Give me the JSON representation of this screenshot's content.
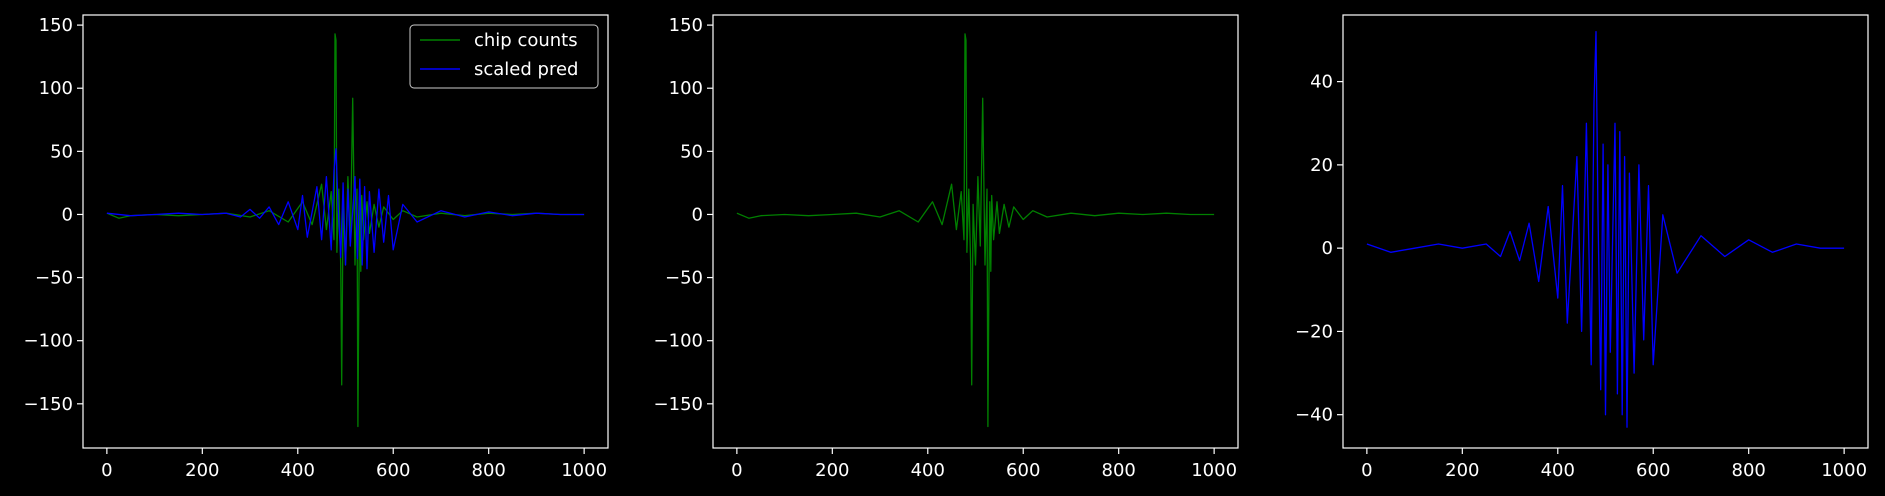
{
  "theme": {
    "background": "#000000",
    "axes_color": "#ffffff",
    "green": "#008000",
    "blue": "#0000ff"
  },
  "chart_data": [
    {
      "type": "line",
      "xlim": [
        -50,
        1050
      ],
      "ylim": [
        -185,
        158
      ],
      "xticks": [
        0,
        200,
        400,
        600,
        800,
        1000
      ],
      "yticks": [
        -150,
        -100,
        -50,
        0,
        50,
        100,
        150
      ],
      "ytick_labels": [
        "−150",
        "−100",
        "−50",
        "0",
        "50",
        "100",
        "150"
      ],
      "xtick_labels": [
        "0",
        "200",
        "400",
        "600",
        "800",
        "1000"
      ],
      "grid": false,
      "legend": {
        "placement": "top-right",
        "entries": [
          "chip counts",
          "scaled pred"
        ]
      },
      "series": [
        {
          "name": "chip counts",
          "color": "#008000",
          "x": [
            0,
            25,
            50,
            100,
            150,
            200,
            250,
            300,
            340,
            380,
            410,
            430,
            450,
            460,
            470,
            476,
            478,
            480,
            482,
            486,
            490,
            492,
            495,
            500,
            505,
            510,
            515,
            520,
            524,
            526,
            528,
            530,
            532,
            534,
            538,
            545,
            550,
            560,
            570,
            580,
            600,
            620,
            650,
            700,
            750,
            800,
            850,
            900,
            950,
            1000
          ],
          "y": [
            1,
            -3,
            -1,
            0,
            -1,
            0,
            1,
            -2,
            3,
            -6,
            10,
            -8,
            24,
            -12,
            18,
            -20,
            143,
            138,
            -30,
            20,
            -40,
            -135,
            8,
            -40,
            30,
            -25,
            92,
            -40,
            20,
            -168,
            -60,
            10,
            -45,
            15,
            -20,
            10,
            -15,
            8,
            -10,
            6,
            -4,
            3,
            -2,
            1,
            -1,
            1,
            0,
            1,
            0,
            0
          ]
        },
        {
          "name": "scaled pred",
          "color": "#0000ff",
          "x": [
            0,
            50,
            100,
            150,
            200,
            250,
            280,
            300,
            320,
            340,
            360,
            380,
            400,
            410,
            420,
            440,
            450,
            460,
            470,
            476,
            480,
            484,
            490,
            495,
            500,
            505,
            510,
            520,
            525,
            530,
            535,
            540,
            545,
            550,
            560,
            570,
            580,
            590,
            600,
            620,
            650,
            700,
            750,
            800,
            850,
            900,
            950,
            1000
          ],
          "y": [
            1,
            -1,
            0,
            1,
            0,
            1,
            -2,
            4,
            -3,
            6,
            -8,
            10,
            -12,
            15,
            -18,
            22,
            -20,
            30,
            -28,
            35,
            52,
            10,
            -34,
            25,
            -40,
            20,
            -25,
            30,
            -35,
            28,
            -40,
            22,
            -43,
            18,
            -30,
            20,
            -22,
            15,
            -28,
            8,
            -6,
            3,
            -2,
            2,
            -1,
            1,
            0,
            0
          ]
        }
      ]
    },
    {
      "type": "line",
      "xlim": [
        -50,
        1050
      ],
      "ylim": [
        -185,
        158
      ],
      "xticks": [
        0,
        200,
        400,
        600,
        800,
        1000
      ],
      "yticks": [
        -150,
        -100,
        -50,
        0,
        50,
        100,
        150
      ],
      "ytick_labels": [
        "−150",
        "−100",
        "−50",
        "0",
        "50",
        "100",
        "150"
      ],
      "xtick_labels": [
        "0",
        "200",
        "400",
        "600",
        "800",
        "1000"
      ],
      "grid": false,
      "series": [
        {
          "color": "#008000",
          "x": [
            0,
            25,
            50,
            100,
            150,
            200,
            250,
            300,
            340,
            380,
            410,
            430,
            450,
            460,
            470,
            476,
            478,
            480,
            482,
            486,
            490,
            492,
            495,
            500,
            505,
            510,
            515,
            520,
            524,
            526,
            528,
            530,
            532,
            534,
            538,
            545,
            550,
            560,
            570,
            580,
            600,
            620,
            650,
            700,
            750,
            800,
            850,
            900,
            950,
            1000
          ],
          "y": [
            1,
            -3,
            -1,
            0,
            -1,
            0,
            1,
            -2,
            3,
            -6,
            10,
            -8,
            24,
            -12,
            18,
            -20,
            143,
            138,
            -30,
            20,
            -40,
            -135,
            8,
            -40,
            30,
            -25,
            92,
            -40,
            20,
            -168,
            -60,
            10,
            -45,
            15,
            -20,
            10,
            -15,
            8,
            -10,
            6,
            -4,
            3,
            -2,
            1,
            -1,
            1,
            0,
            1,
            0,
            0
          ]
        }
      ]
    },
    {
      "type": "line",
      "xlim": [
        -50,
        1050
      ],
      "ylim": [
        -48,
        56
      ],
      "xticks": [
        0,
        200,
        400,
        600,
        800,
        1000
      ],
      "yticks": [
        -40,
        -20,
        0,
        20,
        40
      ],
      "ytick_labels": [
        "−40",
        "−20",
        "0",
        "20",
        "40"
      ],
      "xtick_labels": [
        "0",
        "200",
        "400",
        "600",
        "800",
        "1000"
      ],
      "grid": false,
      "series": [
        {
          "color": "#0000ff",
          "x": [
            0,
            50,
            100,
            150,
            200,
            250,
            280,
            300,
            320,
            340,
            360,
            380,
            400,
            410,
            420,
            440,
            450,
            460,
            470,
            476,
            480,
            484,
            490,
            495,
            500,
            505,
            510,
            520,
            525,
            530,
            535,
            540,
            545,
            550,
            560,
            570,
            580,
            590,
            600,
            620,
            650,
            700,
            750,
            800,
            850,
            900,
            950,
            1000
          ],
          "y": [
            1,
            -1,
            0,
            1,
            0,
            1,
            -2,
            4,
            -3,
            6,
            -8,
            10,
            -12,
            15,
            -18,
            22,
            -20,
            30,
            -28,
            35,
            52,
            10,
            -34,
            25,
            -40,
            20,
            -25,
            30,
            -35,
            28,
            -40,
            22,
            -43,
            18,
            -30,
            20,
            -22,
            15,
            -28,
            8,
            -6,
            3,
            -2,
            2,
            -1,
            1,
            0,
            0
          ]
        }
      ]
    }
  ]
}
